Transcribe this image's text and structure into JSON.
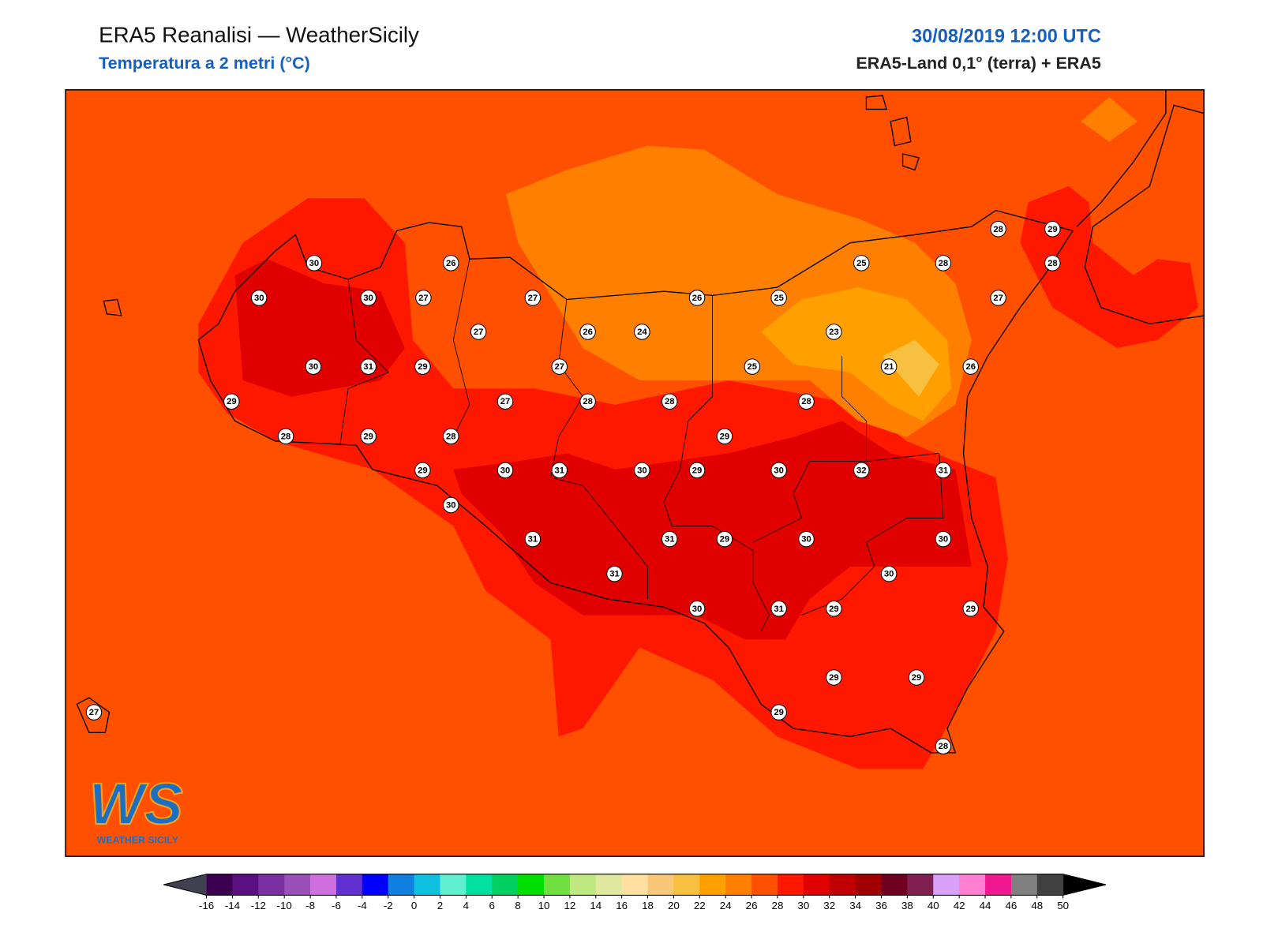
{
  "header": {
    "title": "ERA5 Reanalisi — WeatherSicily",
    "subtitle": "Temperatura a 2 metri (°C)",
    "datetime": "30/08/2019 12:00 UTC",
    "source": "ERA5-Land 0,1° (terra) + ERA5"
  },
  "logo": {
    "text": "WS",
    "caption": "WEATHER SICILY"
  },
  "stations": [
    30,
    26,
    30,
    30,
    27,
    27,
    27,
    26,
    24,
    30,
    31,
    29,
    27,
    29,
    27,
    28,
    28,
    28,
    29,
    28,
    29,
    29,
    30,
    31,
    30,
    29,
    30,
    32,
    31,
    30,
    31,
    31,
    29,
    30,
    30,
    31,
    30,
    30,
    31,
    29,
    29,
    29,
    29,
    29,
    28,
    27,
    28,
    29,
    25,
    28,
    28,
    26,
    25,
    27,
    23,
    25,
    21,
    26,
    28
  ],
  "colorbar": {
    "ticks": [
      -16,
      -14,
      -12,
      -10,
      -8,
      -6,
      -4,
      -2,
      0,
      2,
      4,
      6,
      8,
      10,
      12,
      14,
      16,
      18,
      20,
      22,
      24,
      26,
      28,
      30,
      32,
      34,
      36,
      38,
      40,
      42,
      44,
      46,
      48,
      50
    ],
    "colors": [
      "#3c0050",
      "#5a1080",
      "#7a30a0",
      "#9a50b8",
      "#d070e0",
      "#6030d0",
      "#0000ff",
      "#1080e0",
      "#10c0e0",
      "#60f0d0",
      "#00e0a0",
      "#00d060",
      "#00e000",
      "#70e040",
      "#c0e880",
      "#e0e8a0",
      "#ffe0a0",
      "#f8c878",
      "#f8c040",
      "#ffa000",
      "#ff8000",
      "#ff5000",
      "#ff1800",
      "#e00000",
      "#c00000",
      "#a00000",
      "#700020",
      "#802050",
      "#d8a0f8",
      "#ff80d0",
      "#f01890",
      "#808080",
      "#404040"
    ],
    "under_color": "#404050",
    "over_color": "#000000"
  }
}
